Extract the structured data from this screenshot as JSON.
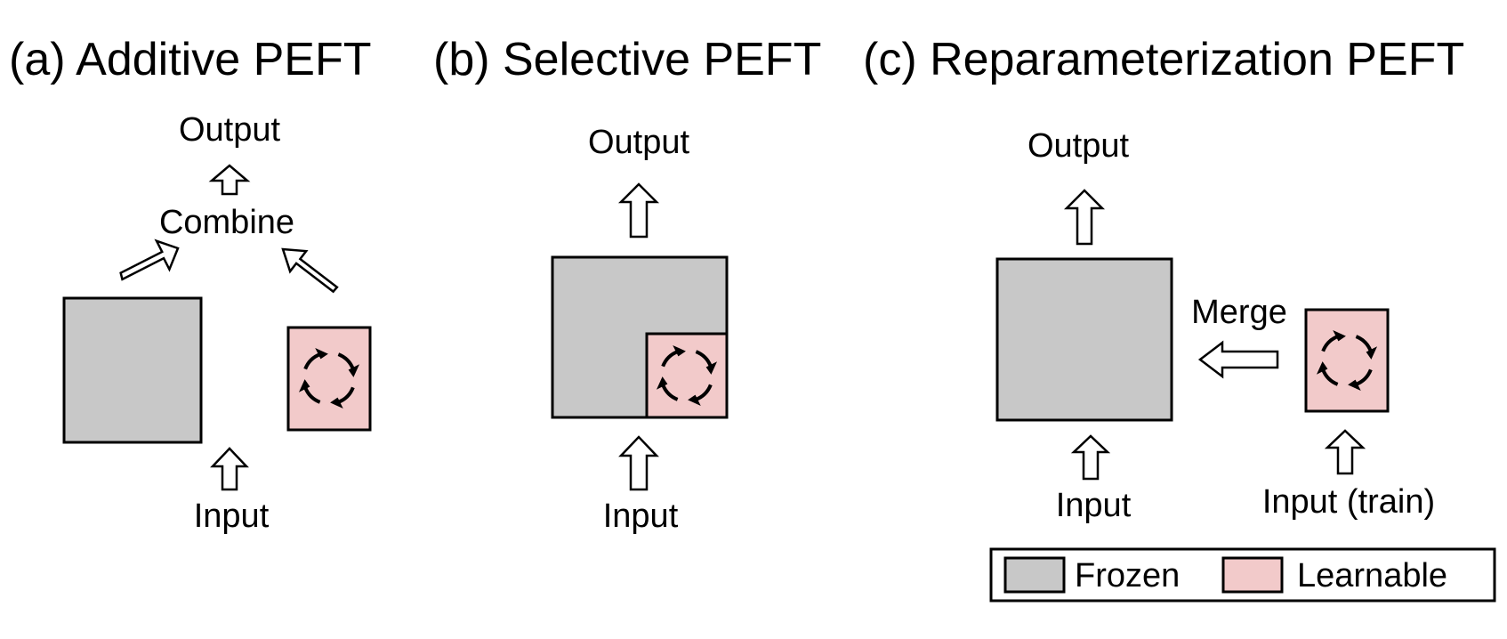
{
  "colors": {
    "frozen": "#c8c8c8",
    "learnable": "#f2caca",
    "stroke": "#000000",
    "background": "#ffffff"
  },
  "panels": {
    "a": {
      "title": "(a) Additive PEFT",
      "output_label": "Output",
      "combine_label": "Combine",
      "input_label": "Input"
    },
    "b": {
      "title": "(b) Selective PEFT",
      "output_label": "Output",
      "input_label": "Input"
    },
    "c": {
      "title": "(c) Reparameterization PEFT",
      "output_label": "Output",
      "merge_label": "Merge",
      "input_label": "Input",
      "input_train_label": "Input (train)"
    }
  },
  "legend": {
    "placement": "bottom-right",
    "frozen_label": "Frozen",
    "learnable_label": "Learnable"
  },
  "icons": {
    "update_cycle": "rotate-arrows-icon",
    "flow_arrow": "hollow-arrow-icon"
  }
}
